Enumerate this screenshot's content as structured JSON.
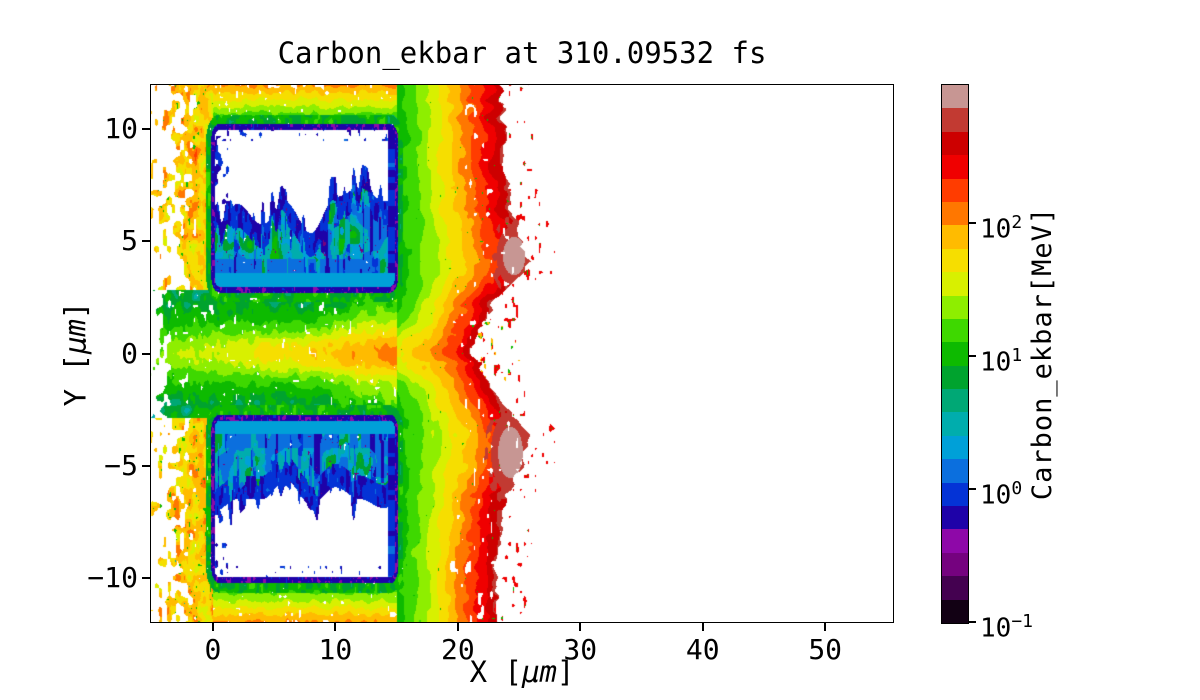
{
  "title": "Carbon_ekbar at 310.09532 fs",
  "axes": {
    "xlabel": {
      "pre": "X [",
      "unit": "μm",
      "post": "]"
    },
    "ylabel": {
      "pre": "Y [",
      "unit": "μm",
      "post": "]"
    },
    "xticks": [
      {
        "value": 0,
        "label": "0"
      },
      {
        "value": 10,
        "label": "10"
      },
      {
        "value": 20,
        "label": "20"
      },
      {
        "value": 30,
        "label": "30"
      },
      {
        "value": 40,
        "label": "40"
      },
      {
        "value": 50,
        "label": "50"
      }
    ],
    "yticks": [
      {
        "value": 10,
        "label": "10"
      },
      {
        "value": 5,
        "label": "5"
      },
      {
        "value": 0,
        "label": "0"
      },
      {
        "value": -5,
        "label": "−5"
      },
      {
        "value": -10,
        "label": "−10"
      }
    ]
  },
  "colorbar": {
    "label": "Carbon_ekbar[MeV]",
    "scale": "log",
    "min_mev": 0.1,
    "max_mev": 1120,
    "ticks": [
      {
        "value": 100,
        "base": "10",
        "exp": "2"
      },
      {
        "value": 10,
        "base": "10",
        "exp": "1"
      },
      {
        "value": 1,
        "base": "10",
        "exp": "0"
      },
      {
        "value": 0.1,
        "base": "10",
        "exp": "−1"
      }
    ],
    "colors": [
      "#120114",
      "#440150",
      "#75027F",
      "#8E08A8",
      "#1E02A8",
      "#0433D6",
      "#0B6FDE",
      "#00A0D8",
      "#00ADAD",
      "#00A875",
      "#00A32E",
      "#0DBA00",
      "#3ED800",
      "#8EEE00",
      "#D8F000",
      "#F6DE00",
      "#FFBB00",
      "#FF7700",
      "#FF3C00",
      "#F00000",
      "#CD0000",
      "#C23A32",
      "#C79693"
    ]
  },
  "chart_data": {
    "type": "heatmap",
    "title": "Carbon_ekbar at 310.09532 fs",
    "quantity": "Carbon_ekbar",
    "unit": "MeV",
    "time_fs": 310.09532,
    "xlabel": "X [μm]",
    "ylabel": "Y [μm]",
    "xlim": [
      -5.14,
      55.6
    ],
    "ylim": [
      -12.01,
      12.01
    ],
    "xticks": [
      0,
      10,
      20,
      30,
      40,
      50
    ],
    "yticks": [
      10,
      5,
      0,
      -5,
      -10
    ],
    "colorbar_ticks_mev": [
      100,
      10,
      1,
      0.1
    ],
    "colormap": "nipy_spectral-like, discrete ~23 bands, log scale 0.1 to ~1000 MeV",
    "features": {
      "target_blocks": [
        {
          "x": [
            0,
            15
          ],
          "y": [
            2.85,
            10.1
          ],
          "note": "navy border; teal/green/blue noisy interior filling lower part; white gap at top"
        },
        {
          "x": [
            0,
            15
          ],
          "y": [
            -10.1,
            -2.85
          ],
          "note": "navy border; teal/green/blue noisy interior filling upper part; white gap at bottom"
        }
      ],
      "right_boundary": [
        [
          12.1,
          23.3
        ],
        [
          10,
          23.7
        ],
        [
          8,
          23.9
        ],
        [
          6,
          24.6
        ],
        [
          4.8,
          25.3
        ],
        [
          4.1,
          25.9
        ],
        [
          3.2,
          24.6
        ],
        [
          2.2,
          23.0
        ],
        [
          1.2,
          22.0
        ],
        [
          0.3,
          21.3
        ],
        [
          -0.5,
          21.6
        ],
        [
          -1.5,
          22.6
        ],
        [
          -2.6,
          24.3
        ],
        [
          -3.6,
          25.8
        ],
        [
          -4.4,
          25.5
        ],
        [
          -5.5,
          24.7
        ],
        [
          -7,
          23.8
        ],
        [
          -9,
          23.2
        ],
        [
          -11,
          23.0
        ],
        [
          -12.1,
          23.2
        ]
      ],
      "hot_spots": [
        {
          "x": 24.6,
          "y": 4.35,
          "rx": 1.45,
          "ry": 1.35,
          "mev": 500
        },
        {
          "x": 24.3,
          "y": -4.4,
          "rx": 1.6,
          "ry": 1.8,
          "mev": 500
        }
      ],
      "midline_jet": {
        "y": 0,
        "x": [
          -5,
          17
        ],
        "mev": [
          40,
          150
        ]
      },
      "left_spray": {
        "x": [
          -5.1,
          0
        ],
        "mev": [
          50,
          150
        ]
      },
      "shells": "energy rises left-to-right from green ~10 MeV at the blocks through yellow/orange to a red shell (200-600 MeV) at 17<x<26; pink-gray cores ~1000 MeV; white (no particles) for x>27"
    }
  }
}
